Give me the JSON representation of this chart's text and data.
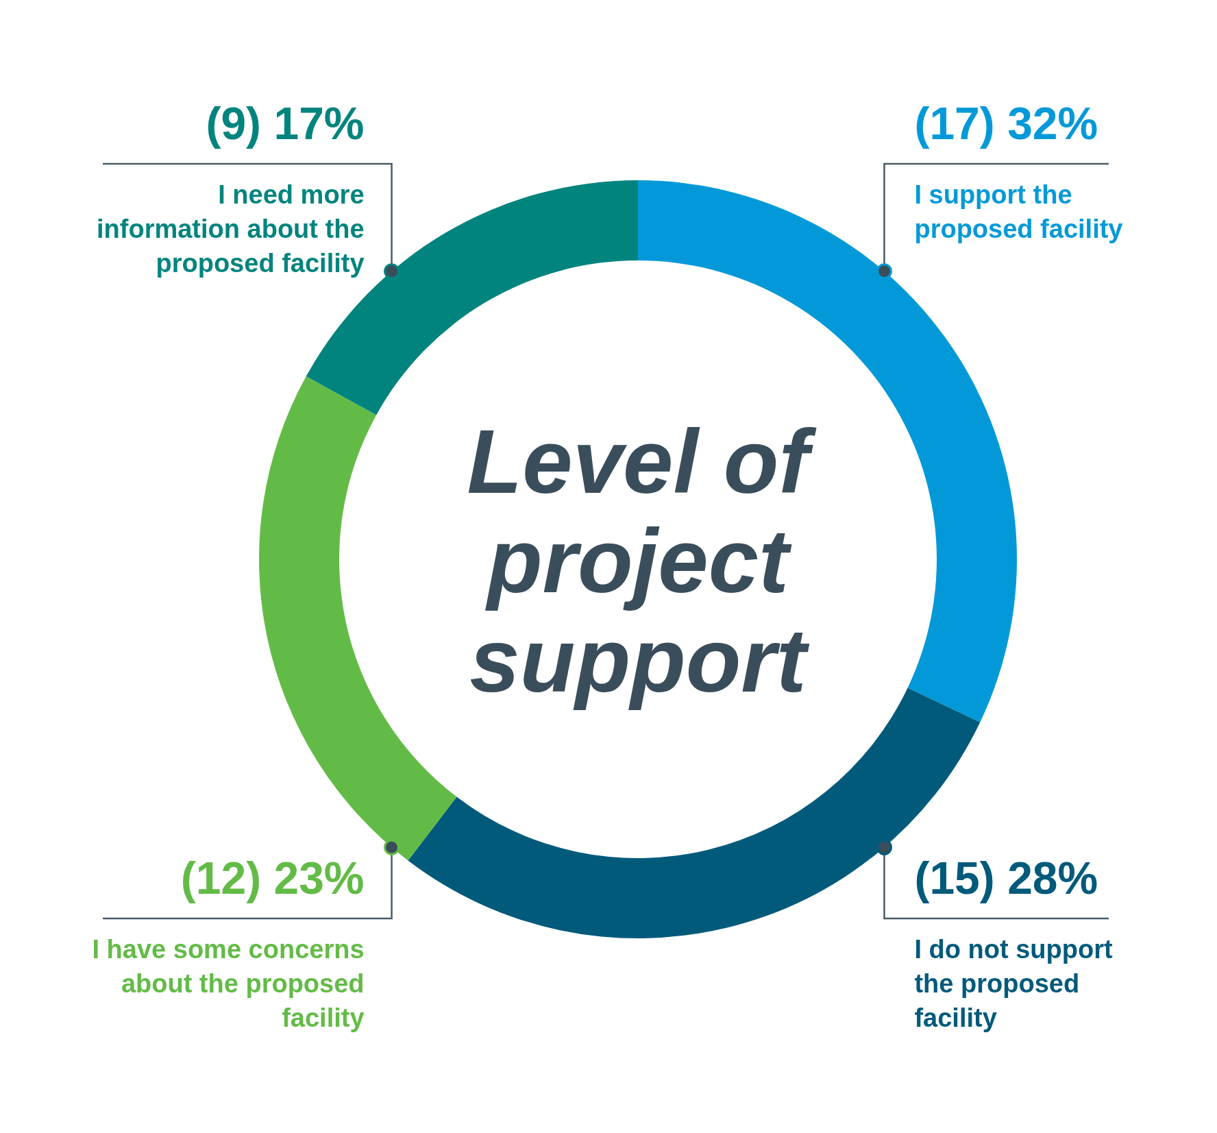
{
  "chart_data": {
    "type": "donut",
    "title": "Level of project support",
    "categories": [
      "I support the proposed facility",
      "I do not support the proposed facility",
      "I have some concerns about the proposed facility",
      "I need more information about the proposed facility"
    ],
    "values": [
      17,
      15,
      12,
      9
    ],
    "value_labels": [
      "(17) 32%",
      "(15) 28%",
      "(12) 23%",
      "(9) 17%"
    ],
    "colors": [
      "#0399d8",
      "#025a7b",
      "#63bb47",
      "#02847e"
    ]
  }
}
